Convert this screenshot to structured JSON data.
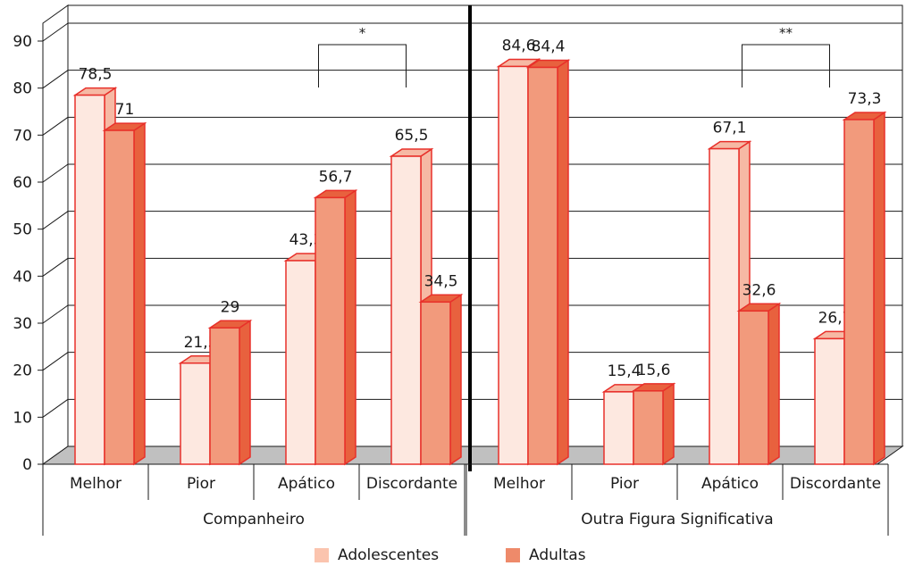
{
  "chart_data": {
    "type": "bar",
    "y_ticks": [
      "0",
      "10",
      "20",
      "30",
      "40",
      "50",
      "60",
      "70",
      "80",
      "90"
    ],
    "ylim": [
      0,
      90
    ],
    "grid": true,
    "groups": [
      {
        "name": "Companheiro",
        "categories": [
          "Melhor",
          "Pior",
          "Apático",
          "Discordante"
        ],
        "series": [
          {
            "name": "Adolescentes",
            "values": [
              78.5,
              21.5,
              43.3,
              65.5
            ],
            "labels": [
              "78,5",
              "21,5",
              "43,3",
              "65,5"
            ]
          },
          {
            "name": "Adultas",
            "values": [
              71,
              29,
              56.7,
              34.5
            ],
            "labels": [
              "71",
              "29",
              "56,7",
              "34,5"
            ]
          }
        ],
        "significance": {
          "label": "*",
          "category": "Apático",
          "span_to": "Discordante"
        }
      },
      {
        "name": "Outra Figura Significativa",
        "categories": [
          "Melhor",
          "Pior",
          "Apático",
          "Discordante"
        ],
        "series": [
          {
            "name": "Adolescentes",
            "values": [
              84.6,
              15.4,
              67.1,
              26.7
            ],
            "labels": [
              "84,6",
              "15,4",
              "67,1",
              "26,7"
            ]
          },
          {
            "name": "Adultas",
            "values": [
              84.4,
              15.6,
              32.6,
              73.3
            ],
            "labels": [
              "84,4",
              "15,6",
              "32,6",
              "73,3"
            ]
          }
        ],
        "significance": {
          "label": "**",
          "category": "Apático",
          "span_to": "Discordante"
        }
      }
    ],
    "legend": [
      {
        "name": "Adolescentes",
        "color": "#fbc4ae"
      },
      {
        "name": "Adultas",
        "color": "#ee8a6a"
      }
    ],
    "legend_position": "bottom",
    "colors": {
      "adolescentes_fill": "#fde8e0",
      "adolescentes_side": "#f6b9a4",
      "adultas_fill": "#f29a7c",
      "adultas_side": "#e8613e",
      "bar_stroke": "#e8302a",
      "floor": "#c0c0c0"
    }
  }
}
